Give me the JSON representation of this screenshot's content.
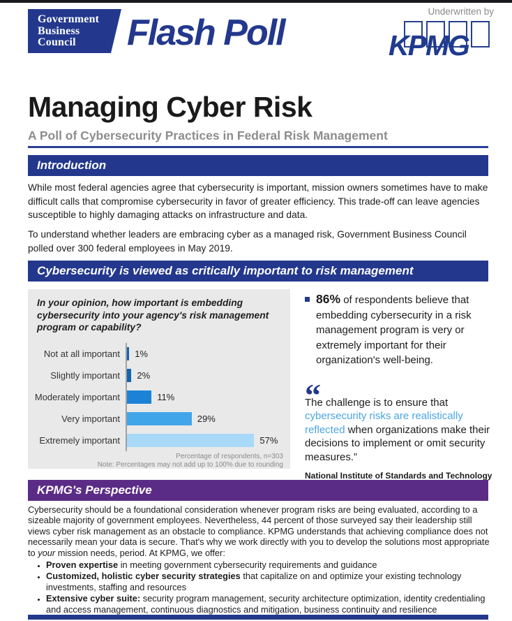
{
  "header": {
    "logo": {
      "line1": "Government",
      "line2": "Business",
      "line3": "Council"
    },
    "brand_title": "Flash Poll",
    "underwritten_by": "Underwritten by",
    "kpmg_logo_text": "KPMG"
  },
  "title": "Managing Cyber Risk",
  "subtitle": "A Poll of Cybersecurity Practices in Federal Risk Management",
  "sections": {
    "introduction": {
      "heading": "Introduction",
      "paragraphs": [
        "While most federal agencies agree that cybersecurity is important, mission owners sometimes have to make difficult calls that compromise cybersecurity in favor of greater efficiency. This trade-off can leave agencies susceptible to highly damaging attacks on infrastructure and data.",
        "To understand whether leaders are embracing cyber as a managed risk, Government Business Council polled over 300 federal employees in May 2019."
      ]
    },
    "poll": {
      "heading": "Cybersecurity is viewed as critically important to risk management",
      "stat": {
        "value": "86%",
        "text": " of respondents believe that embedding cybersecurity in a risk management program is very or extremely important for their organization's well-being."
      },
      "quote": {
        "mark": "“",
        "pre": "The challenge is to ensure that ",
        "highlight": "cybersecurity risks are realistically reflected",
        "post": " when organizations make their decisions to implement or omit security measures.”",
        "attribution": "National Institute of Standards and Technology"
      }
    },
    "kpmg": {
      "heading": "KPMG's Perspective",
      "paragraph": {
        "pre": "Cybersecurity should be a foundational consideration whenever program risks are being evaluated, according to a sizeable majority of government employees. Nevertheless, 44 percent of those surveyed say their leadership still views cyber risk management as an obstacle to compliance. KPMG understands that achieving compliance does not necessarily mean your data is secure. That's why we work directly with you to develop the solutions most appropriate to ",
        "italic": "your",
        "post": " mission needs, period. At KPMG, we offer:"
      },
      "bullets": [
        {
          "bold": "Proven expertise",
          "rest": " in meeting government cybersecurity requirements and guidance"
        },
        {
          "bold": "Customized, holistic cyber security strategies",
          "rest": " that capitalize on and optimize your existing technology investments, staffing and resources"
        },
        {
          "bold": "Extensive cyber suite:",
          "rest": " security program management, security architecture optimization, identity credentialing and access management, continuous diagnostics and mitigation, business continuity and resilience"
        }
      ]
    }
  },
  "chart_data": {
    "type": "bar",
    "orientation": "horizontal",
    "title": "In your opinion, how important is embedding cybersecurity into your agency's risk management program or capability?",
    "categories": [
      "Not at all important",
      "Slightly important",
      "Moderately important",
      "Very important",
      "Extremely important"
    ],
    "values": [
      1,
      2,
      11,
      29,
      57
    ],
    "value_labels": [
      "1%",
      "2%",
      "11%",
      "29%",
      "57%"
    ],
    "bar_colors": [
      "#1264AF",
      "#1264AF",
      "#1C82D6",
      "#41A5E9",
      "#A8D9F8"
    ],
    "xlim": [
      0,
      62
    ],
    "n": 303,
    "notes": [
      "Percentage of respondents, n=303",
      "Note: Percentages may not add up to 100% due to rounding"
    ]
  },
  "colors": {
    "navy": "#23388D",
    "purple": "#5B2C86",
    "highlight_blue": "#4BA5E2",
    "chart_background": "#E9E9E9",
    "subtitle_gray": "#8d8d8d"
  }
}
